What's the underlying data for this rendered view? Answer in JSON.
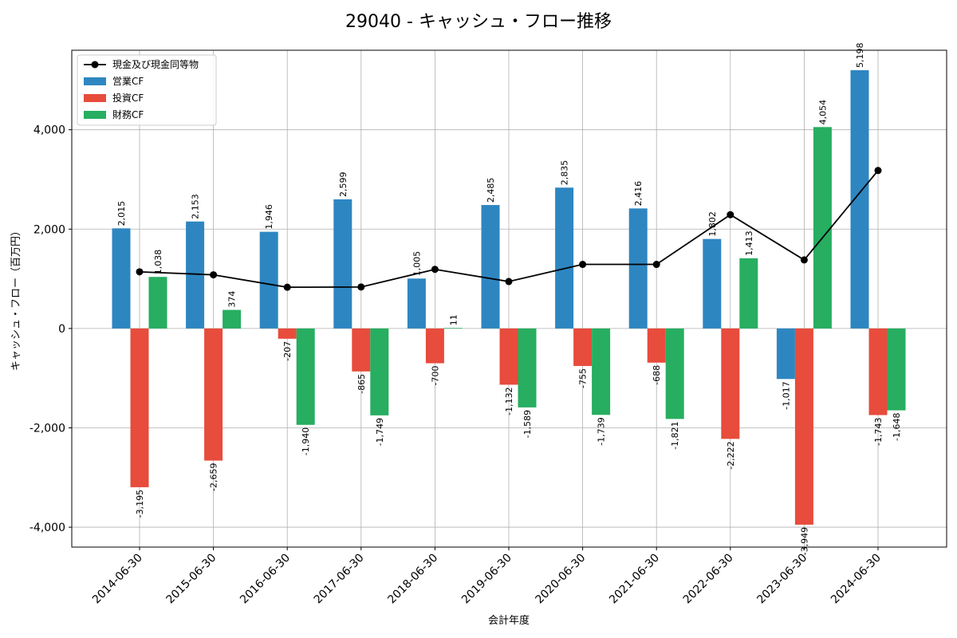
{
  "chart_data": {
    "type": "bar",
    "title": "29040 - キャッシュ・フロー推移",
    "xlabel": "会計年度",
    "ylabel": "キャッシュ・フロー（百万円）",
    "ylim": [
      -4400,
      5600
    ],
    "yticks": [
      -4000,
      -2000,
      0,
      2000,
      4000
    ],
    "ytick_labels": [
      "-4,000",
      "-2,000",
      "0",
      "2,000",
      "4,000"
    ],
    "grid": true,
    "legend_position": "top-left",
    "categories": [
      "2014-06-30",
      "2015-06-30",
      "2016-06-30",
      "2017-06-30",
      "2018-06-30",
      "2019-06-30",
      "2020-06-30",
      "2021-06-30",
      "2022-06-30",
      "2023-06-30",
      "2024-06-30"
    ],
    "series": [
      {
        "name": "営業CF",
        "kind": "bar",
        "color": "#2e86c1",
        "values": [
          2015,
          2153,
          1946,
          2599,
          1005,
          2485,
          2835,
          2416,
          1802,
          -1017,
          5198
        ],
        "labels": [
          "2,015",
          "2,153",
          "1,946",
          "2,599",
          "1,005",
          "2,485",
          "2,835",
          "2,416",
          "1,802",
          "-1,017",
          "5,198"
        ]
      },
      {
        "name": "投資CF",
        "kind": "bar",
        "color": "#e74c3c",
        "values": [
          -3195,
          -2659,
          -207,
          -865,
          -700,
          -1132,
          -755,
          -688,
          -2222,
          -3949,
          -1743
        ],
        "labels": [
          "-3,195",
          "-2,659",
          "-207",
          "-865",
          "-700",
          "-1,132",
          "-755",
          "-688",
          "-2,222",
          "-3,949",
          "-1,743"
        ]
      },
      {
        "name": "財務CF",
        "kind": "bar",
        "color": "#27ae60",
        "values": [
          1038,
          374,
          -1940,
          -1749,
          11,
          -1589,
          -1739,
          -1821,
          1413,
          4054,
          -1648
        ],
        "labels": [
          "1,038",
          "374",
          "-1,940",
          "-1,749",
          "11",
          "-1,589",
          "-1,739",
          "-1,821",
          "1,413",
          "4,054",
          "-1,648"
        ]
      },
      {
        "name": "現金及び現金同等物",
        "kind": "line",
        "color": "#000000",
        "values": [
          1140,
          1080,
          830,
          835,
          1190,
          945,
          1290,
          1290,
          2290,
          1380,
          3180
        ]
      }
    ],
    "legend_order": [
      "現金及び現金同等物",
      "営業CF",
      "投資CF",
      "財務CF"
    ]
  }
}
